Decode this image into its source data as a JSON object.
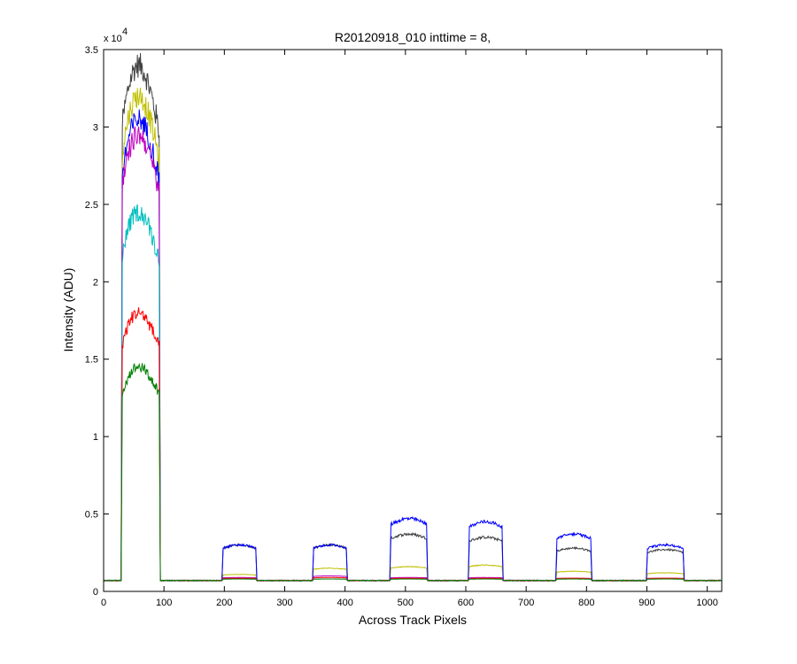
{
  "chart_data": {
    "type": "line",
    "title": "R20120918_010 inttime = 8,",
    "xlabel": "Across Track Pixels",
    "ylabel": "Intensity (ADU)",
    "xlim": [
      0,
      1024
    ],
    "ylim": [
      0,
      35000
    ],
    "xticks": [
      0,
      100,
      200,
      300,
      400,
      500,
      600,
      700,
      800,
      900,
      1000
    ],
    "yticks": [
      0,
      5000,
      10000,
      15000,
      20000,
      25000,
      30000,
      35000
    ],
    "yticklabels": [
      "0",
      "0.5",
      "1",
      "1.5",
      "2",
      "2.5",
      "3",
      "3.5"
    ],
    "y_multiplier_text": "x 10",
    "y_multiplier_exp": "4",
    "grid": false,
    "legend": "none",
    "baseline": 700,
    "segments": [
      {
        "x_start": 29,
        "x_end": 94
      },
      {
        "x_start": 196,
        "x_end": 254
      },
      {
        "x_start": 346,
        "x_end": 404
      },
      {
        "x_start": 474,
        "x_end": 537
      },
      {
        "x_start": 604,
        "x_end": 662
      },
      {
        "x_start": 749,
        "x_end": 809
      },
      {
        "x_start": 899,
        "x_end": 962
      }
    ],
    "series": [
      {
        "color": "#404040",
        "segment_peaks": [
          34000,
          3000,
          3000,
          3700,
          3500,
          2800,
          2700
        ]
      },
      {
        "color": "#bfbf00",
        "segment_peaks": [
          32000,
          1100,
          1500,
          1600,
          1700,
          1300,
          1200
        ]
      },
      {
        "color": "#0000ff",
        "segment_peaks": [
          30500,
          3000,
          3000,
          4700,
          4500,
          3700,
          3000
        ]
      },
      {
        "color": "#bf00bf",
        "segment_peaks": [
          29500,
          900,
          1000,
          900,
          900,
          850,
          850
        ]
      },
      {
        "color": "#00bfbf",
        "segment_peaks": [
          24500,
          800,
          800,
          800,
          800,
          800,
          800
        ]
      },
      {
        "color": "#ff0000",
        "segment_peaks": [
          18000,
          850,
          900,
          850,
          850,
          850,
          850
        ]
      },
      {
        "color": "#008000",
        "segment_peaks": [
          14500,
          800,
          800,
          800,
          800,
          800,
          800
        ]
      }
    ]
  }
}
